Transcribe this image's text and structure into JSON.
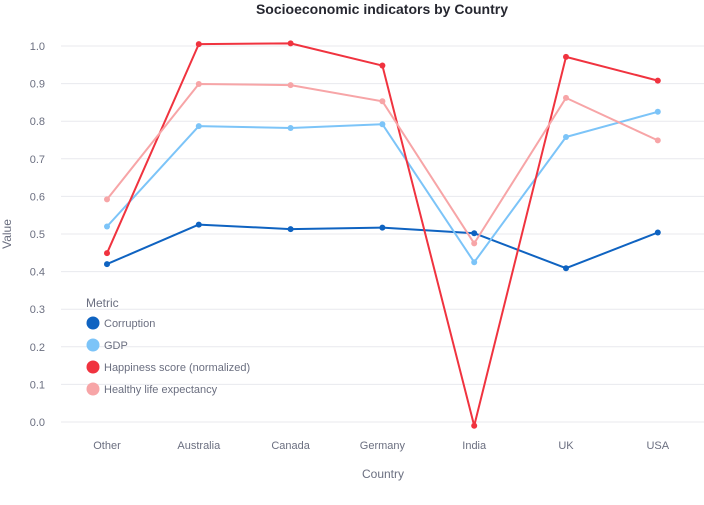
{
  "chart_data": {
    "type": "line",
    "title": "Socioeconomic indicators by Country",
    "xlabel": "Country",
    "ylabel": "Value",
    "categories": [
      "Other",
      "Australia",
      "Canada",
      "Germany",
      "India",
      "UK",
      "USA"
    ],
    "ylim": [
      0.0,
      1.0
    ],
    "yticks": [
      "0.0",
      "0.1",
      "0.2",
      "0.3",
      "0.4",
      "0.5",
      "0.6",
      "0.7",
      "0.8",
      "0.9",
      "1.0"
    ],
    "grid": true,
    "legend": {
      "title": "Metric",
      "placement": "bottom-left"
    },
    "series": [
      {
        "name": "Corruption",
        "color": "#0f63c1",
        "values": [
          0.42,
          0.525,
          0.513,
          0.517,
          0.502,
          0.409,
          0.504
        ]
      },
      {
        "name": "GDP",
        "color": "#7cc4f8",
        "values": [
          0.52,
          0.787,
          0.782,
          0.792,
          0.425,
          0.758,
          0.825
        ]
      },
      {
        "name": "Happiness score (normalized)",
        "color": "#f0333f",
        "values": [
          0.449,
          1.005,
          1.007,
          0.948,
          -0.01,
          0.971,
          0.908
        ]
      },
      {
        "name": "Healthy life expectancy",
        "color": "#f7a5a7",
        "values": [
          0.592,
          0.899,
          0.896,
          0.853,
          0.475,
          0.862,
          0.749
        ]
      }
    ]
  }
}
